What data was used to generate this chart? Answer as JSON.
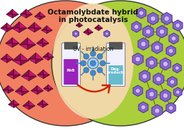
{
  "title_line1": "Octamolybdate hybrid",
  "title_line2": "in photocatalysis",
  "uv_label": "UV - irradiation",
  "rhb_label": "RhB",
  "deg_label": "Deg.\nproducts",
  "bg_outer": "#ffffff",
  "ellipse_left_color": "#f08060",
  "ellipse_right_color": "#aacf3a",
  "ellipse_center_color": "#f7d8b0",
  "crystal_color1": "#cc1177",
  "crystal_color2": "#881144",
  "crystal_shadow": "#220011",
  "vial_liquid_left": "#9922bb",
  "vial_liquid_right": "#66bbcc",
  "vial_cap": "#666666",
  "arrow_color": "#cc2200",
  "uv_color": "#4488cc",
  "uv_inner": "#aaccee",
  "molecule_color": "#8866cc",
  "molecule_outline": "#553399",
  "title_color": "#111111",
  "figsize": [
    2.67,
    1.89
  ],
  "dpi": 100
}
